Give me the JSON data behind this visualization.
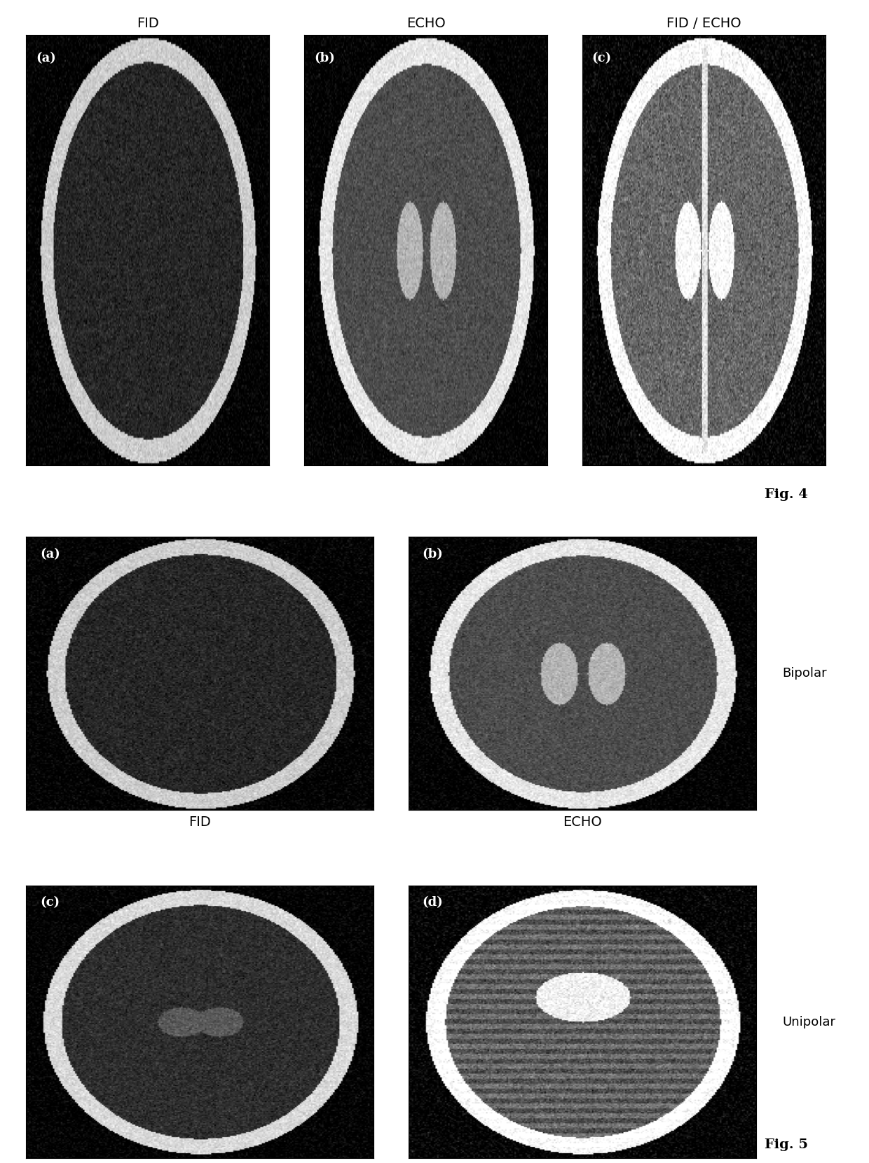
{
  "fig4_title_a": "FID",
  "fig4_title_b": "ECHO",
  "fig4_title_c": "FID / ECHO",
  "fig4_label": "Fig. 4",
  "fig5_label": "Fig. 5",
  "fig5_col1_label": "FID",
  "fig5_col2_label": "ECHO",
  "fig5_row1_label": "Bipolar",
  "fig5_row2_label": "Unipolar",
  "panel_labels": [
    "(a)",
    "(b)",
    "(c)",
    "(d)"
  ],
  "bg_color": "#ffffff",
  "img_bg": "#1a1a1a",
  "text_color": "#000000",
  "label_color": "#ffffff",
  "font_size_title": 14,
  "font_size_label": 13,
  "font_size_fig": 14,
  "font_size_panel": 13
}
